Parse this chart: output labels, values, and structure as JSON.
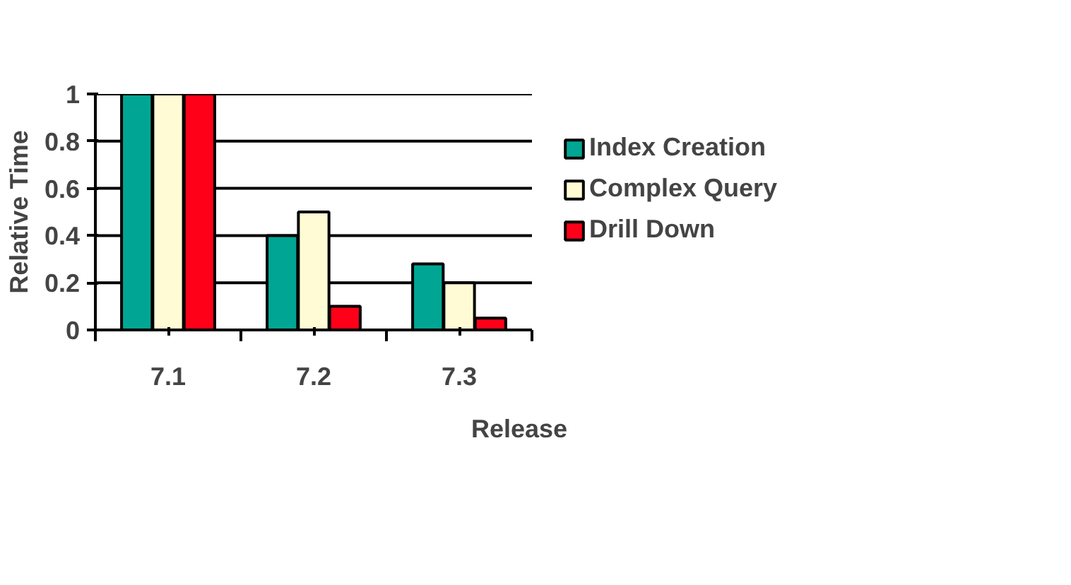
{
  "chart_data": {
    "type": "bar",
    "xlabel": "Release",
    "ylabel": "Relative Time",
    "categories": [
      "7.1",
      "7.2",
      "7.3"
    ],
    "series": [
      {
        "name": "Index Creation",
        "color": "#00a693",
        "values": [
          1,
          0.4,
          0.28
        ]
      },
      {
        "name": "Complex Query",
        "color": "#fffcd5",
        "values": [
          1,
          0.5,
          0.2
        ]
      },
      {
        "name": "Drill Down",
        "color": "#ff0019",
        "values": [
          1,
          0.1,
          0.05
        ]
      }
    ],
    "ylim": [
      0,
      1
    ],
    "yticks": [
      0,
      0.2,
      0.4,
      0.6,
      0.8,
      1
    ],
    "grid": "y",
    "legend": "right"
  }
}
